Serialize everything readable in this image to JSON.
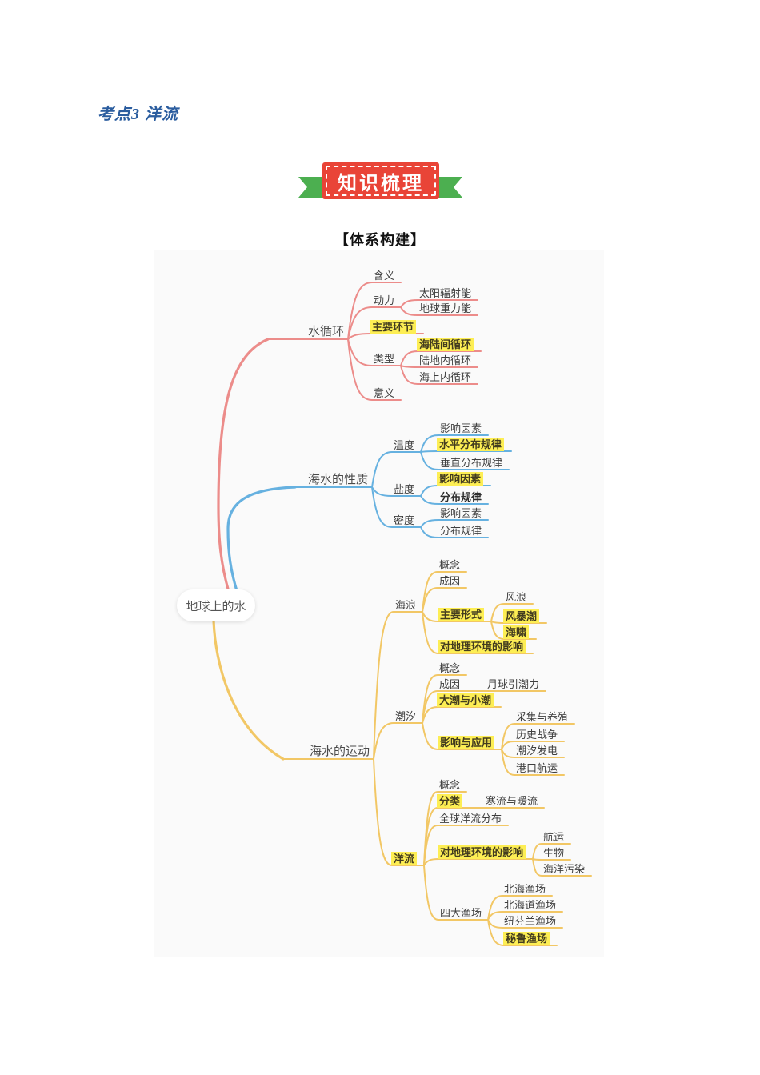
{
  "page": {
    "title": "考点3 洋流"
  },
  "banner": {
    "label": "知识梳理"
  },
  "section_heading": "【体系构建】",
  "colors": {
    "title_blue": "#2b5d9f",
    "banner_red": "#e94437",
    "ribbon_green": "#4caf50",
    "branch_red": "#ec8c8a",
    "branch_blue": "#66b1e0",
    "branch_yellow": "#f2c765",
    "highlight_yellow": "#fdee54"
  },
  "mindmap": {
    "root": {
      "id": "root",
      "label": "地球上的水"
    },
    "nodes": [
      {
        "id": "shuixunhuan",
        "label": "水循环",
        "highlight": false,
        "bold": false
      },
      {
        "id": "hanyi",
        "label": "含义",
        "highlight": false,
        "bold": false
      },
      {
        "id": "dongli",
        "label": "动力",
        "highlight": false,
        "bold": false
      },
      {
        "id": "taiyangfushe",
        "label": "太阳辐射能",
        "highlight": false,
        "bold": false
      },
      {
        "id": "diqiuzhongli",
        "label": "地球重力能",
        "highlight": false,
        "bold": false
      },
      {
        "id": "zhuyaohuanjie",
        "label": "主要环节",
        "highlight": true,
        "bold": false
      },
      {
        "id": "leixing",
        "label": "类型",
        "highlight": false,
        "bold": false
      },
      {
        "id": "hailujianxunhuan",
        "label": "海陆间循环",
        "highlight": true,
        "bold": false
      },
      {
        "id": "ludineixunhuan",
        "label": "陆地内循环",
        "highlight": false,
        "bold": false
      },
      {
        "id": "haishangneixunhuan",
        "label": "海上内循环",
        "highlight": false,
        "bold": false
      },
      {
        "id": "yiyi",
        "label": "意义",
        "highlight": false,
        "bold": false
      },
      {
        "id": "haishuixingzhi",
        "label": "海水的性质",
        "highlight": false,
        "bold": false
      },
      {
        "id": "wendu_yingxiang",
        "label": "影响因素",
        "highlight": false,
        "bold": false
      },
      {
        "id": "wendu",
        "label": "温度",
        "highlight": false,
        "bold": false
      },
      {
        "id": "shuipingfenbu",
        "label": "水平分布规律",
        "highlight": true,
        "bold": false
      },
      {
        "id": "chuizhifenbu",
        "label": "垂直分布规律",
        "highlight": false,
        "bold": false
      },
      {
        "id": "yandu_yingxiang",
        "label": "影响因素",
        "highlight": true,
        "bold": false
      },
      {
        "id": "yandu",
        "label": "盐度",
        "highlight": false,
        "bold": false
      },
      {
        "id": "yandu_fenbu",
        "label": "分布规律",
        "highlight": false,
        "bold": true
      },
      {
        "id": "midu_yingxiang",
        "label": "影响因素",
        "highlight": false,
        "bold": false
      },
      {
        "id": "midu",
        "label": "密度",
        "highlight": false,
        "bold": false
      },
      {
        "id": "midu_fenbu",
        "label": "分布规律",
        "highlight": false,
        "bold": false
      },
      {
        "id": "haishuiyundong",
        "label": "海水的运动",
        "highlight": false,
        "bold": false
      },
      {
        "id": "hailang",
        "label": "海浪",
        "highlight": false,
        "bold": false
      },
      {
        "id": "hailang_gainian",
        "label": "概念",
        "highlight": false,
        "bold": false
      },
      {
        "id": "hailang_chengyin",
        "label": "成因",
        "highlight": false,
        "bold": false
      },
      {
        "id": "zhuyaoxingshi",
        "label": "主要形式",
        "highlight": true,
        "bold": false
      },
      {
        "id": "fenglang",
        "label": "风浪",
        "highlight": false,
        "bold": false
      },
      {
        "id": "fengbaochao",
        "label": "风暴潮",
        "highlight": true,
        "bold": false
      },
      {
        "id": "haixiao",
        "label": "海啸",
        "highlight": true,
        "bold": false
      },
      {
        "id": "hailang_yingxiang",
        "label": "对地理环境的影响",
        "highlight": true,
        "bold": false
      },
      {
        "id": "chaoxi",
        "label": "潮汐",
        "highlight": false,
        "bold": false
      },
      {
        "id": "chaoxi_gainian",
        "label": "概念",
        "highlight": false,
        "bold": false
      },
      {
        "id": "chaoxi_chengyin",
        "label": "成因",
        "highlight": false,
        "bold": false
      },
      {
        "id": "yueqiuyinchaoli",
        "label": "月球引潮力",
        "highlight": false,
        "bold": false
      },
      {
        "id": "dachaoxiaochao",
        "label": "大潮与小潮",
        "highlight": true,
        "bold": false
      },
      {
        "id": "yingxiangyuyingyong",
        "label": "影响与应用",
        "highlight": true,
        "bold": false
      },
      {
        "id": "caijiyangzhi",
        "label": "采集与养殖",
        "highlight": false,
        "bold": false
      },
      {
        "id": "lishizhanzheng",
        "label": "历史战争",
        "highlight": false,
        "bold": false
      },
      {
        "id": "chaoxifadian",
        "label": "潮汐发电",
        "highlight": false,
        "bold": false
      },
      {
        "id": "gangkouhangyun",
        "label": "港口航运",
        "highlight": false,
        "bold": false
      },
      {
        "id": "yangliu",
        "label": "洋流",
        "highlight": true,
        "bold": false
      },
      {
        "id": "yangliu_gainian",
        "label": "概念",
        "highlight": false,
        "bold": false
      },
      {
        "id": "fenlei",
        "label": "分类",
        "highlight": true,
        "bold": false
      },
      {
        "id": "hanliunuanliu",
        "label": "寒流与暖流",
        "highlight": false,
        "bold": false
      },
      {
        "id": "quanqiuyangliufenbu",
        "label": "全球洋流分布",
        "highlight": false,
        "bold": false
      },
      {
        "id": "yangliu_yingxiang",
        "label": "对地理环境的影响",
        "highlight": true,
        "bold": false
      },
      {
        "id": "hangyun",
        "label": "航运",
        "highlight": false,
        "bold": false
      },
      {
        "id": "shengwu",
        "label": "生物",
        "highlight": false,
        "bold": false
      },
      {
        "id": "haiyangwuran",
        "label": "海洋污染",
        "highlight": false,
        "bold": false
      },
      {
        "id": "sidayuchang",
        "label": "四大渔场",
        "highlight": false,
        "bold": false
      },
      {
        "id": "beihaiyuchang",
        "label": "北海渔场",
        "highlight": false,
        "bold": false
      },
      {
        "id": "beihaidaoyuchang",
        "label": "北海道渔场",
        "highlight": false,
        "bold": false
      },
      {
        "id": "niufenlanyuchang",
        "label": "纽芬兰渔场",
        "highlight": false,
        "bold": false
      },
      {
        "id": "biluyuchang",
        "label": "秘鲁渔场",
        "highlight": true,
        "bold": false
      }
    ]
  }
}
